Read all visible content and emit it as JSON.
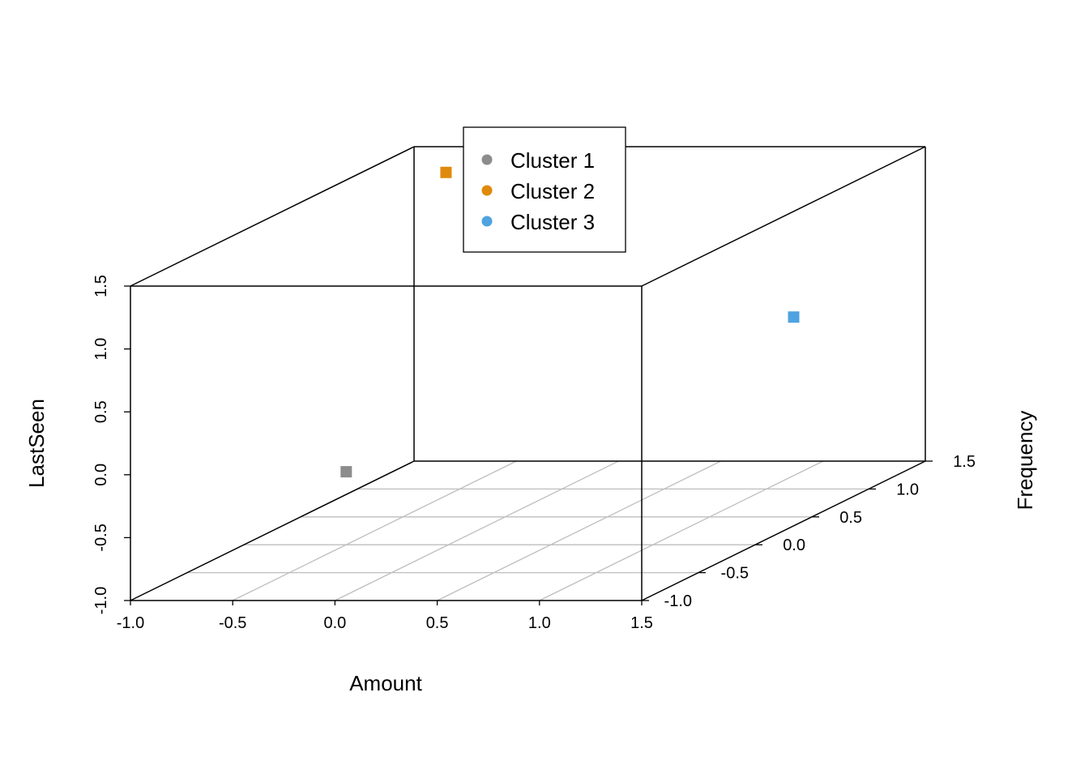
{
  "chart_data": {
    "type": "scatter",
    "projection": "3d-box",
    "axes": {
      "x": {
        "label": "Amount",
        "range": [
          -1.0,
          1.5
        ],
        "ticks": [
          "-1.0",
          "-0.5",
          "0.0",
          "0.5",
          "1.0",
          "1.5"
        ]
      },
      "y": {
        "label": "Frequency",
        "range": [
          -1.0,
          1.5
        ],
        "ticks": [
          "-1.0",
          "-0.5",
          "0.0",
          "0.5",
          "1.0",
          "1.5"
        ]
      },
      "z": {
        "label": "LastSeen",
        "range": [
          -1.0,
          1.5
        ],
        "ticks": [
          "-1.0",
          "-0.5",
          "0.0",
          "0.5",
          "1.0",
          "1.5"
        ]
      }
    },
    "floor_grid": true,
    "legend_position": "top-center",
    "series": [
      {
        "name": "Cluster 1",
        "color": "#8C8C8C",
        "points": [
          {
            "x": -0.25,
            "y": -0.45,
            "z": -0.22
          }
        ]
      },
      {
        "name": "Cluster 2",
        "color": "#E08A0B",
        "points": [
          {
            "x": -0.4,
            "y": 0.7,
            "z": 1.65
          }
        ]
      },
      {
        "name": "Cluster 3",
        "color": "#4EA3E0",
        "points": [
          {
            "x": 1.3,
            "y": 0.7,
            "z": 0.5
          }
        ]
      }
    ]
  }
}
